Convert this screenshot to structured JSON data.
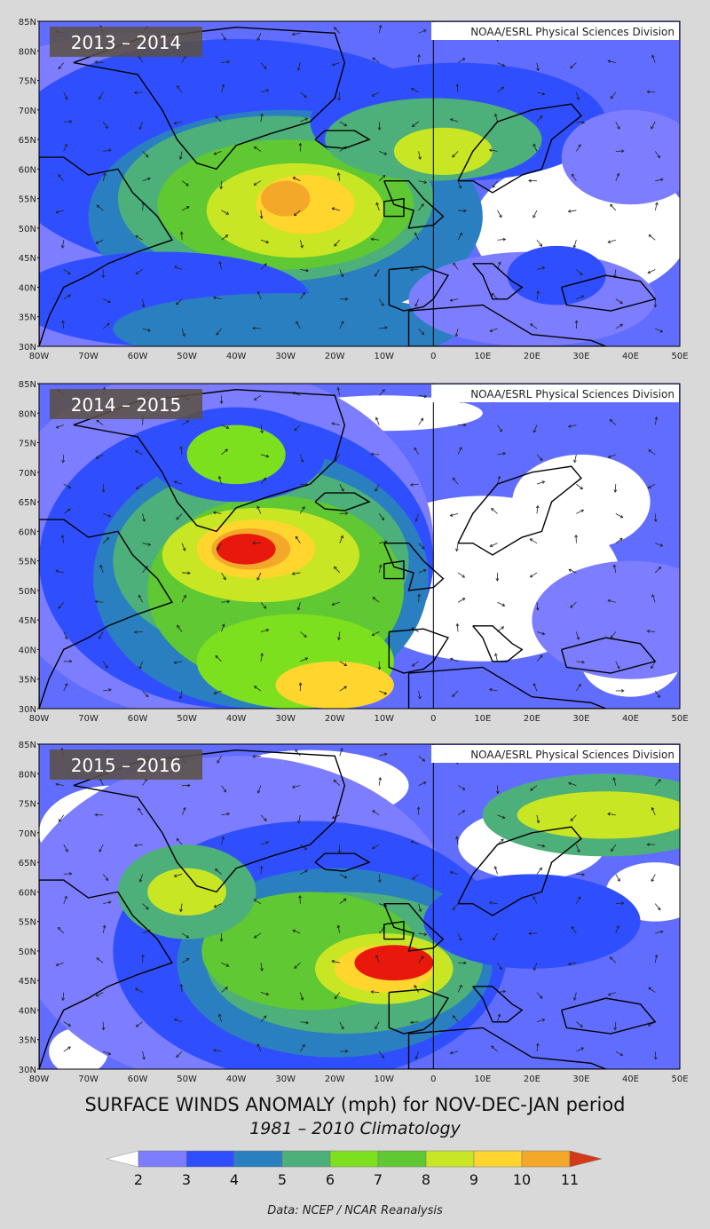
{
  "credit_top": "NOAA/ESRL Physical Sciences Division",
  "panels": [
    {
      "period": "2013 – 2014"
    },
    {
      "period": "2014 – 2015"
    },
    {
      "period": "2015 – 2016"
    }
  ],
  "lat_labels": [
    "85N",
    "80N",
    "75N",
    "70N",
    "65N",
    "60N",
    "55N",
    "50N",
    "45N",
    "40N",
    "35N",
    "30N"
  ],
  "lon_labels": [
    "80W",
    "70W",
    "60W",
    "50W",
    "40W",
    "30W",
    "20W",
    "10W",
    "0",
    "10E",
    "20E",
    "30E",
    "40E",
    "50E"
  ],
  "title_line1": "SURFACE WINDS ANOMALY (mph)   for   NOV-DEC-JAN   period",
  "title_line2": "1981 – 2010 Climatology",
  "source": "Data: NCEP / NCAR Reanalysis",
  "colorbar": {
    "levels": [
      "2",
      "3",
      "4",
      "5",
      "6",
      "7",
      "8",
      "9",
      "10",
      "11"
    ],
    "colors": [
      "#ffffff",
      "#7d7dff",
      "#2f4fff",
      "#2a7fc0",
      "#4daf7a",
      "#7ce01f",
      "#5fc832",
      "#c8e623",
      "#ffd52e",
      "#f4a82a",
      "#d43a1a"
    ]
  },
  "map_colors": {
    "ocean_low": "#ffffff",
    "c2": "#7d7dff",
    "c3": "#2f4fff",
    "c4": "#2a7fc0",
    "c5": "#4daf7a",
    "c6": "#7ce01f",
    "c7": "#5fc832",
    "c8": "#c8e623",
    "c9": "#ffd52e",
    "c10": "#f4a82a",
    "c11": "#e8180d"
  }
}
